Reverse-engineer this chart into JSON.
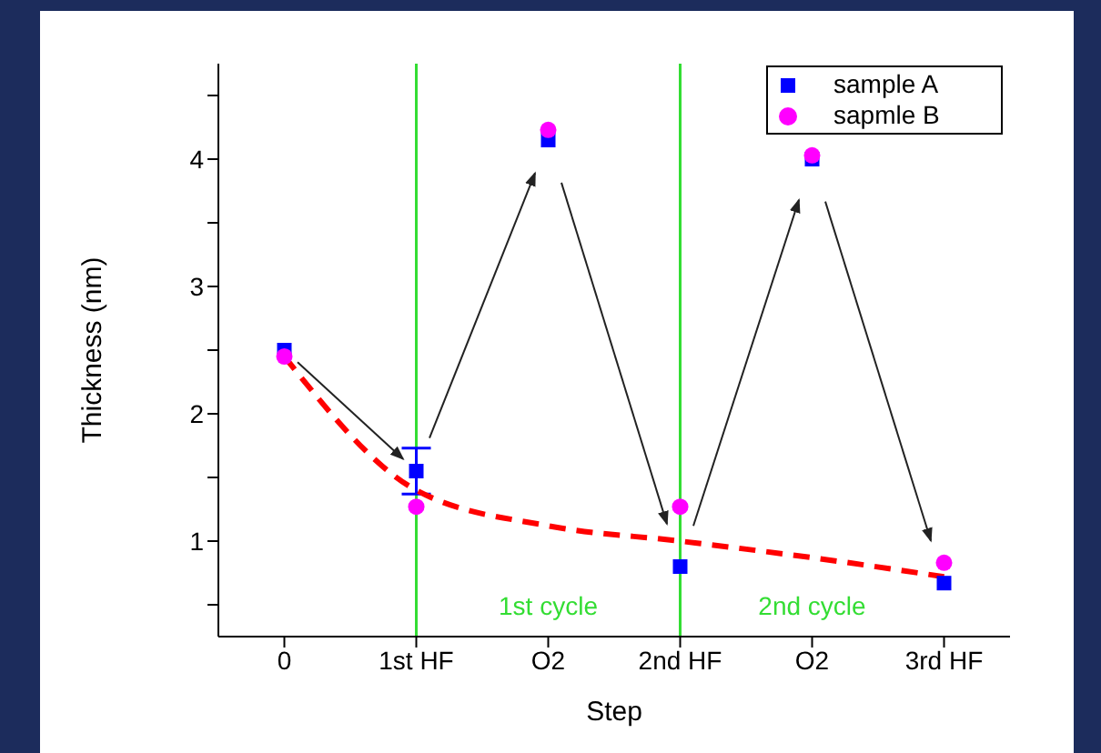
{
  "chart_data": {
    "type": "scatter",
    "xlabel": "Step",
    "ylabel": "Thickness (nm)",
    "categories": [
      "0",
      "1st HF",
      "O2",
      "2nd HF",
      "O2",
      "3rd HF"
    ],
    "series": [
      {
        "name": "sample A",
        "color": "#0000ff",
        "marker": "square",
        "values": [
          2.5,
          1.55,
          4.15,
          0.8,
          4.0,
          0.67
        ],
        "errors": [
          null,
          0.18,
          null,
          null,
          null,
          null
        ]
      },
      {
        "name": "sapmle B",
        "color": "#ff00ff",
        "marker": "circle",
        "values": [
          2.45,
          1.27,
          4.23,
          1.27,
          4.03,
          0.83
        ]
      },
      {
        "type": "line",
        "color": "#ff0000",
        "line_style": "dashed",
        "marker": "none",
        "values": [
          2.45,
          1.4,
          1.12,
          1.0,
          0.87,
          0.72
        ]
      }
    ],
    "ylim": [
      0.25,
      4.75
    ],
    "yticks": [
      {
        "value": 0.5,
        "label": null
      },
      1,
      {
        "value": 1.5,
        "label": null
      },
      2,
      {
        "value": 2.5,
        "label": null
      },
      3,
      {
        "value": 3.5,
        "label": null
      },
      4,
      {
        "value": 4.5,
        "label": null
      }
    ],
    "ref_lines": [
      {
        "axis": "x",
        "value": "1st HF",
        "color": "#33dd33"
      },
      {
        "axis": "x",
        "value": "2nd HF",
        "color": "#33dd33"
      }
    ],
    "annotations": [
      "1st cycle",
      "2nd cycle"
    ],
    "legend": "top right",
    "grid": false,
    "tick_labels": "xy"
  }
}
